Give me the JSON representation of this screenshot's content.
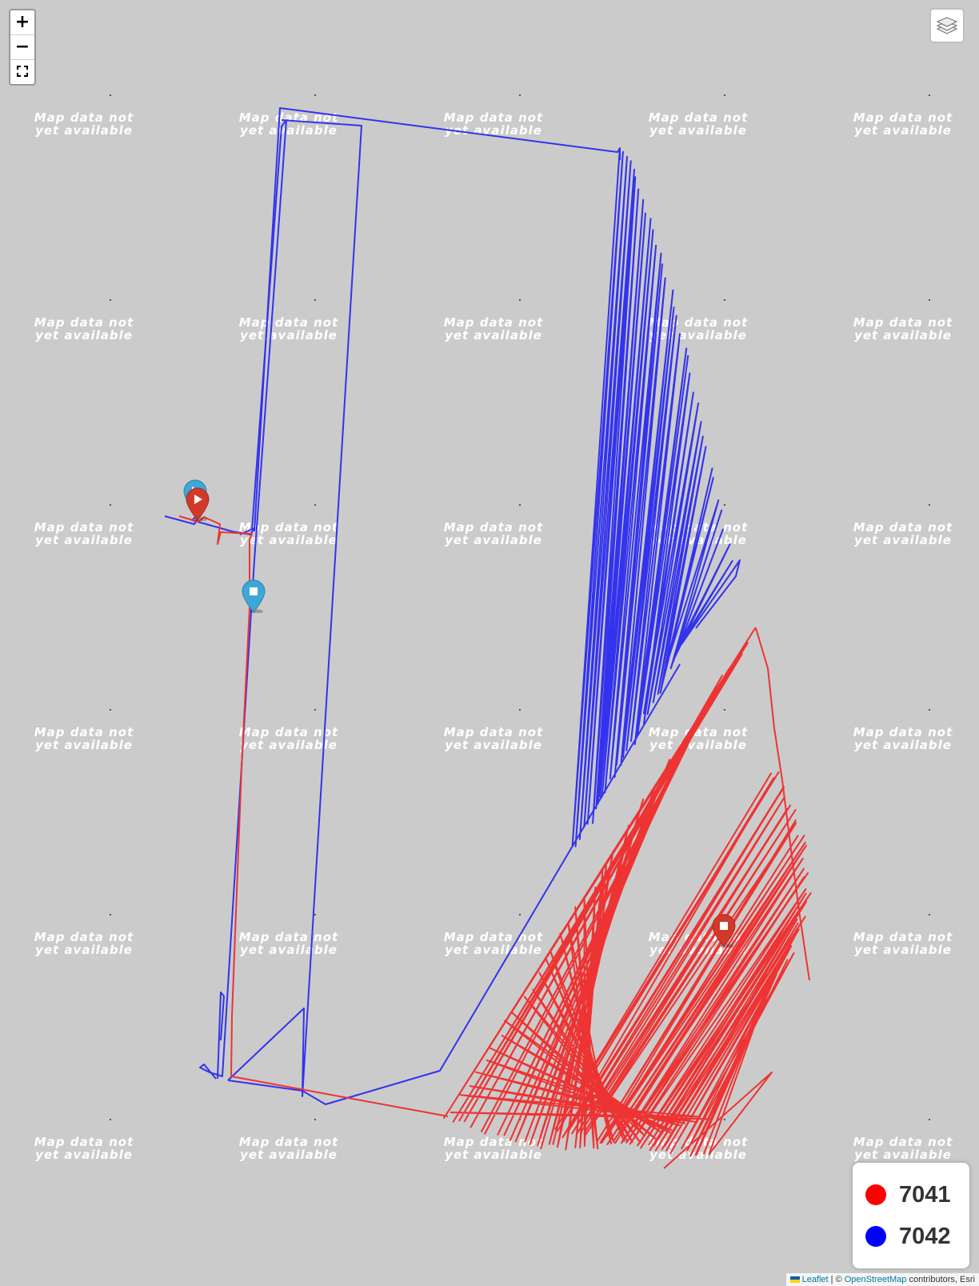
{
  "tile_placeholder": "Map data not\nyet available",
  "zoom": {
    "in_label": "+",
    "out_label": "−",
    "fullscreen_label": "⛶"
  },
  "layers_control": {
    "icon": "layers-icon"
  },
  "legend": [
    {
      "label": "7041",
      "color": "#ff0000"
    },
    {
      "label": "7042",
      "color": "#0000ff"
    }
  ],
  "track_colors": {
    "7041": "#ee3333",
    "7042": "#3333ee"
  },
  "markers": [
    {
      "name": "start-marker-7042",
      "color": "#3fa7d6",
      "icon": "play-icon"
    },
    {
      "name": "start-marker-7041",
      "color": "#d13a2b",
      "icon": "play-icon"
    },
    {
      "name": "end-marker-7042",
      "color": "#3fa7d6",
      "icon": "stop-icon"
    },
    {
      "name": "end-marker-7041",
      "color": "#d13a2b",
      "icon": "stop-icon"
    }
  ],
  "attribution": {
    "leaflet": "Leaflet",
    "separator": " | © ",
    "osm": "OpenStreetMap",
    "suffix": " contributors, Esri"
  }
}
